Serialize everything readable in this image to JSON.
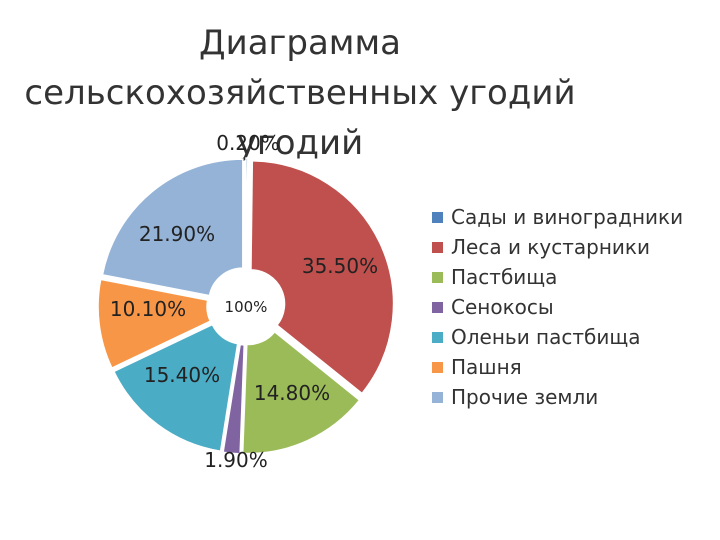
{
  "title": "Диаграмма сельскохозяйственных угодий угодий",
  "center_label": "100%",
  "colors": {
    "sady": "#4F81BD",
    "lesa": "#C0504D",
    "pastbisha": "#9BBB59",
    "senokosy": "#8064A2",
    "oleni": "#4BACC6",
    "pashnya": "#F79646",
    "prochie": "#95B3D7"
  },
  "chart_data": {
    "type": "pie",
    "variant": "doughnut-exploded",
    "categories": [
      "Сады и виноградники",
      "Леса и кустарники",
      "Пастбища",
      "Сенокосы",
      "Оленьи пастбища",
      "Пашня",
      "Прочие земли"
    ],
    "values": [
      0.2,
      35.5,
      14.8,
      1.9,
      15.4,
      10.1,
      21.9
    ],
    "data_labels": [
      "0.20%",
      "35.50%",
      "14.80%",
      "1.90%",
      "15.40%",
      "10.10%",
      "21.90%"
    ],
    "legend_position": "right"
  }
}
